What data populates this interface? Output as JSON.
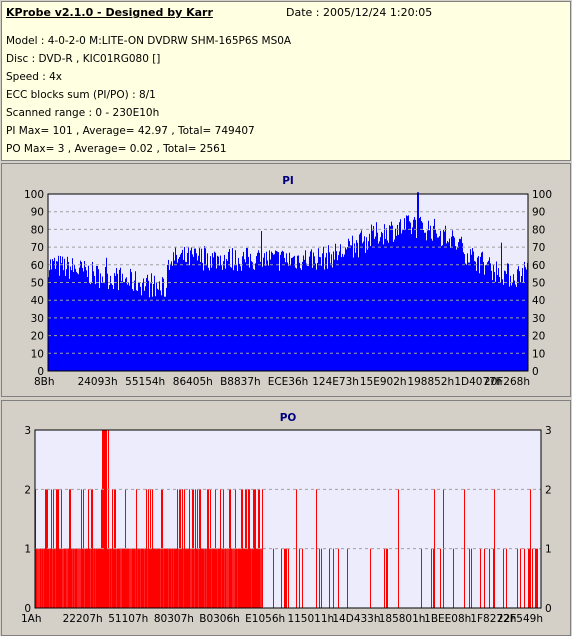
{
  "header": {
    "title": "KProbe v2.1.0 - Designed by Karr",
    "date": "Date : 2005/12/24 1:20:05",
    "lines": [
      "Model : 4-0-2-0 M:LITE-ON DVDRW SHM-165P6S MS0A",
      "Disc : DVD-R , KIC01RG080  []",
      "Speed : 4x",
      "ECC blocks sum (PI/PO) : 8/1",
      "Scanned range : 0 - 230E10h",
      "PI Max= 101 , Average= 42.97 , Total= 749407",
      "PO Max= 3 , Average= 0.02 , Total= 2561"
    ]
  },
  "colors": {
    "pi_fill": "#0000ff",
    "po_fill": "#ff0000",
    "plot_bg": "#ececfc",
    "grid": "#a0a0a0"
  },
  "chart_data": [
    {
      "type": "area",
      "title": "PI",
      "ylim": [
        0,
        100
      ],
      "yticks": [
        0,
        10,
        20,
        30,
        40,
        50,
        60,
        70,
        80,
        90,
        100
      ],
      "xtick_labels": [
        "8Bh",
        "24093h",
        "55154h",
        "86405h",
        "B8837h",
        "ECE36h",
        "124E73h",
        "15E902h",
        "198852h",
        "1D4077h",
        "20F268h"
      ],
      "grid": "dashed horizontal",
      "profile": [
        [
          0.0,
          60
        ],
        [
          0.05,
          58
        ],
        [
          0.1,
          54
        ],
        [
          0.15,
          52
        ],
        [
          0.2,
          49
        ],
        [
          0.243,
          46
        ],
        [
          0.25,
          63
        ],
        [
          0.3,
          64
        ],
        [
          0.4,
          63
        ],
        [
          0.5,
          63
        ],
        [
          0.58,
          64
        ],
        [
          0.64,
          70
        ],
        [
          0.68,
          77
        ],
        [
          0.72,
          80
        ],
        [
          0.76,
          82
        ],
        [
          0.8,
          80
        ],
        [
          0.84,
          74
        ],
        [
          0.88,
          65
        ],
        [
          0.93,
          57
        ],
        [
          0.97,
          53
        ],
        [
          1.0,
          58
        ]
      ],
      "max": 101
    },
    {
      "type": "bar",
      "title": "PO",
      "ylim": [
        0,
        3
      ],
      "yticks": [
        0,
        1,
        2,
        3
      ],
      "xtick_labels": [
        "1Ah",
        "22207h",
        "51107h",
        "80307h",
        "B0306h",
        "E1056h",
        "115011h",
        "14D433h",
        "185801h",
        "1BEE08h",
        "1F8272h",
        "22F549h"
      ],
      "grid": "dashed horizontal",
      "max": 3
    }
  ]
}
